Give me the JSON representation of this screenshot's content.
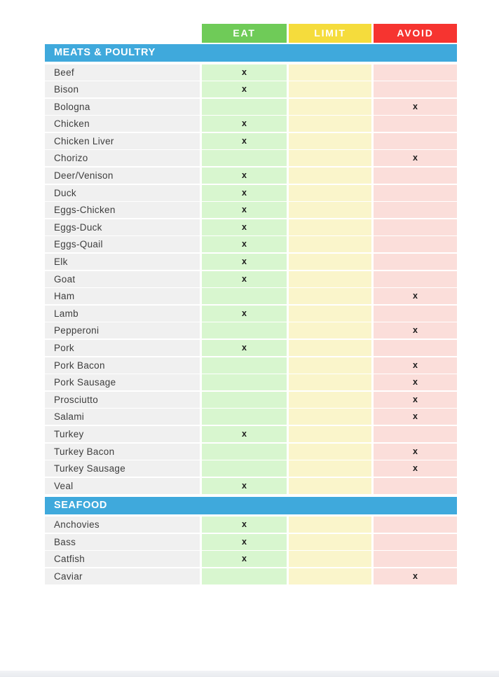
{
  "page": {
    "background": "#ffffff",
    "bottom_bar_color": "#ebedf1"
  },
  "legend": {
    "items": [
      {
        "key": "eat",
        "label": "EAT",
        "header_color": "#6fcb58",
        "cell_color": "#d8f6cf"
      },
      {
        "key": "limit",
        "label": "LIMIT",
        "header_color": "#f5dc3c",
        "cell_color": "#faf5cb"
      },
      {
        "key": "avoid",
        "label": "AVOID",
        "header_color": "#f63430",
        "cell_color": "#fbdeda"
      }
    ]
  },
  "table": {
    "mark_symbol": "x",
    "section_header_color": "#3fa9dc",
    "label_cell_color": "#f0f0f0",
    "sections": [
      {
        "title": "MEATS & POULTRY",
        "rows": [
          {
            "label": "Beef",
            "status": "eat"
          },
          {
            "label": "Bison",
            "status": "eat"
          },
          {
            "label": "Bologna",
            "status": "avoid"
          },
          {
            "label": "Chicken",
            "status": "eat"
          },
          {
            "label": "Chicken Liver",
            "status": "eat"
          },
          {
            "label": "Chorizo",
            "status": "avoid"
          },
          {
            "label": "Deer/Venison",
            "status": "eat"
          },
          {
            "label": "Duck",
            "status": "eat"
          },
          {
            "label": "Eggs-Chicken",
            "status": "eat"
          },
          {
            "label": "Eggs-Duck",
            "status": "eat"
          },
          {
            "label": "Eggs-Quail",
            "status": "eat"
          },
          {
            "label": "Elk",
            "status": "eat"
          },
          {
            "label": "Goat",
            "status": "eat"
          },
          {
            "label": "Ham",
            "status": "avoid"
          },
          {
            "label": "Lamb",
            "status": "eat"
          },
          {
            "label": "Pepperoni",
            "status": "avoid"
          },
          {
            "label": "Pork",
            "status": "eat"
          },
          {
            "label": "Pork Bacon",
            "status": "avoid"
          },
          {
            "label": "Pork Sausage",
            "status": "avoid"
          },
          {
            "label": "Prosciutto",
            "status": "avoid"
          },
          {
            "label": "Salami",
            "status": "avoid"
          },
          {
            "label": "Turkey",
            "status": "eat"
          },
          {
            "label": "Turkey Bacon",
            "status": "avoid"
          },
          {
            "label": "Turkey Sausage",
            "status": "avoid"
          },
          {
            "label": "Veal",
            "status": "eat"
          }
        ]
      },
      {
        "title": "SEAFOOD",
        "rows": [
          {
            "label": "Anchovies",
            "status": "eat"
          },
          {
            "label": "Bass",
            "status": "eat"
          },
          {
            "label": "Catfish",
            "status": "eat"
          },
          {
            "label": "Caviar",
            "status": "avoid"
          }
        ]
      }
    ]
  }
}
